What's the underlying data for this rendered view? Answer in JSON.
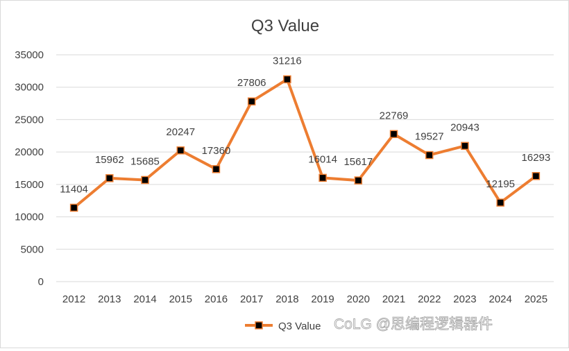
{
  "chart_data": {
    "type": "line",
    "title": "Q3 Value",
    "categories": [
      "2012",
      "2013",
      "2014",
      "2015",
      "2016",
      "2017",
      "2018",
      "2019",
      "2020",
      "2021",
      "2022",
      "2023",
      "2024",
      "2025"
    ],
    "series": [
      {
        "name": "Q3 Value",
        "values": [
          11404,
          15962,
          15685,
          20247,
          17360,
          27806,
          31216,
          16014,
          15617,
          22769,
          19527,
          20943,
          12195,
          16293
        ],
        "line_color": "#ED7D31",
        "marker_color": "#000000"
      }
    ],
    "ylim": [
      0,
      35000
    ],
    "yticks": [
      0,
      5000,
      10000,
      15000,
      20000,
      25000,
      30000,
      35000
    ],
    "grid": true,
    "legend": "bottom",
    "data_labels": true
  },
  "watermark": "CoLG @思编程逻辑器件"
}
